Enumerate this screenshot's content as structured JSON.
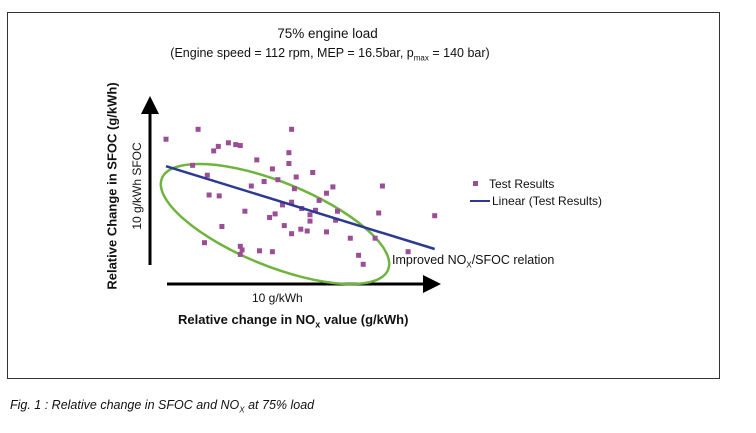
{
  "chart": {
    "title": "75% engine load",
    "subtitle": {
      "prefix": "(Engine speed = 112 rpm, MEP = 16.5bar, p",
      "sub": "max",
      "suffix": " = 140 bar)"
    },
    "ylabel": "Relative Change in SFOC (g/kWh)",
    "yscale_label": "10 g/kWh SFOC",
    "xscale_label": "10 g/kWh",
    "xlabel": {
      "prefix": "Relative change in NO",
      "sub": "x",
      "suffix": " value (g/kWh)"
    },
    "legend": {
      "points": "Test Results",
      "line": "Linear (Test Results)"
    },
    "ellipse_label": {
      "prefix": "Improved NO",
      "sub": "X",
      "suffix": "/SFOC relation"
    },
    "caption": {
      "prefix": "Fig. 1  : Relative change in SFOC and NO",
      "sub": "X",
      "suffix": " at 75% load"
    }
  },
  "chart_data": {
    "type": "scatter",
    "x_range": [
      0,
      30
    ],
    "y_range": [
      0,
      18
    ],
    "series": [
      {
        "name": "Test Results",
        "points": [
          [
            0.0,
            15.2
          ],
          [
            2.9,
            12.3
          ],
          [
            3.5,
            16.3
          ],
          [
            4.5,
            11.2
          ],
          [
            4.7,
            9.0
          ],
          [
            5.2,
            13.9
          ],
          [
            5.7,
            14.4
          ],
          [
            5.8,
            8.9
          ],
          [
            6.8,
            14.8
          ],
          [
            7.6,
            14.6
          ],
          [
            8.1,
            14.5
          ],
          [
            8.1,
            2.4
          ],
          [
            8.6,
            7.2
          ],
          [
            4.2,
            3.7
          ],
          [
            6.1,
            5.5
          ],
          [
            8.1,
            3.3
          ],
          [
            8.3,
            2.9
          ],
          [
            9.3,
            10.0
          ],
          [
            9.9,
            12.9
          ],
          [
            10.2,
            2.8
          ],
          [
            10.7,
            10.5
          ],
          [
            11.3,
            6.5
          ],
          [
            11.6,
            2.7
          ],
          [
            11.6,
            11.9
          ],
          [
            11.9,
            6.9
          ],
          [
            12.2,
            10.7
          ],
          [
            12.7,
            7.9
          ],
          [
            12.9,
            5.6
          ],
          [
            13.4,
            12.5
          ],
          [
            13.4,
            13.7
          ],
          [
            13.7,
            4.7
          ],
          [
            13.7,
            16.3
          ],
          [
            13.7,
            8.2
          ],
          [
            14.0,
            9.7
          ],
          [
            14.2,
            11.0
          ],
          [
            14.7,
            5.2
          ],
          [
            14.8,
            7.5
          ],
          [
            15.4,
            5.0
          ],
          [
            15.7,
            6.1
          ],
          [
            15.7,
            6.8
          ],
          [
            16.0,
            11.5
          ],
          [
            16.3,
            7.3
          ],
          [
            16.7,
            8.4
          ],
          [
            17.5,
            9.2
          ],
          [
            17.5,
            4.9
          ],
          [
            18.2,
            9.9
          ],
          [
            18.5,
            6.2
          ],
          [
            18.7,
            7.2
          ],
          [
            20.1,
            4.2
          ],
          [
            21.0,
            2.3
          ],
          [
            21.5,
            1.3
          ],
          [
            22.8,
            4.2
          ],
          [
            23.2,
            7.0
          ],
          [
            23.6,
            10.0
          ],
          [
            26.4,
            2.7
          ],
          [
            29.3,
            6.7
          ]
        ]
      },
      {
        "name": "Linear (Test Results)",
        "line": [
          [
            0.0,
            12.2
          ],
          [
            29.3,
            3.0
          ]
        ]
      }
    ],
    "annotation_ellipse": {
      "center": [
        11.3,
        5.7
      ],
      "label": "Improved NOX/SFOC relation"
    }
  }
}
